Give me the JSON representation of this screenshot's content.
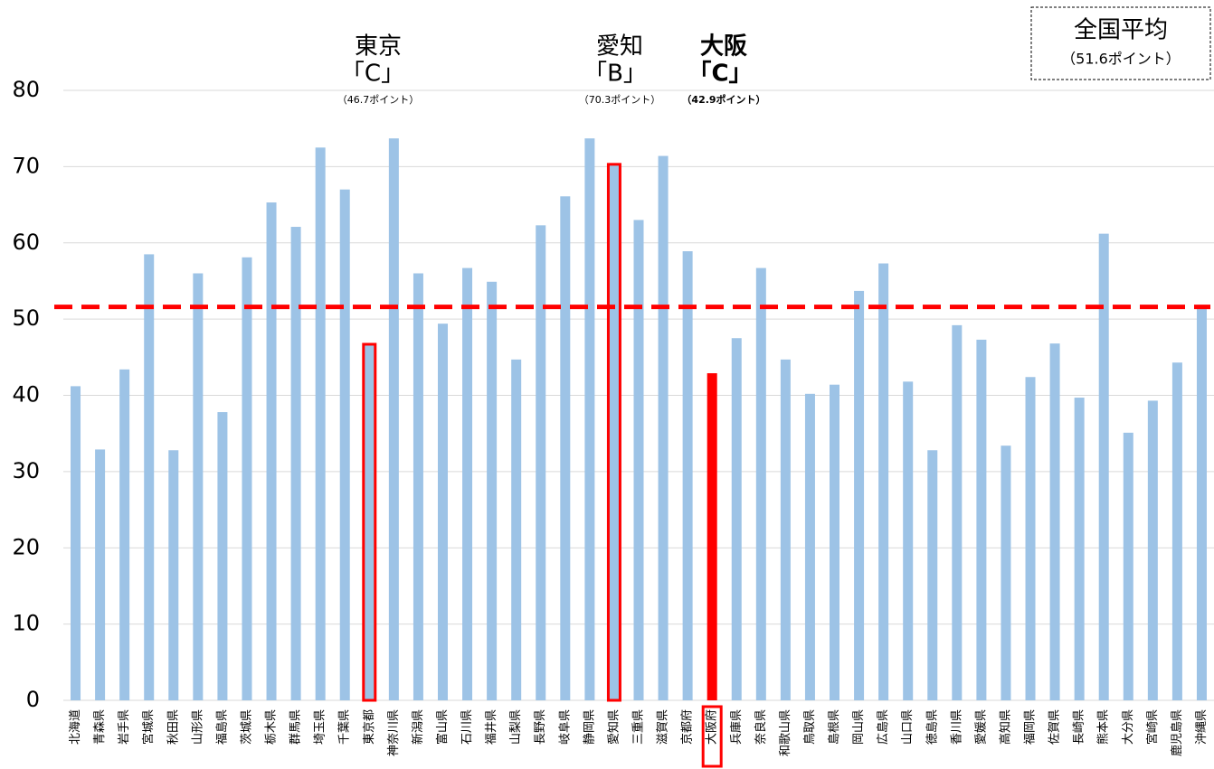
{
  "chart_data": {
    "type": "bar",
    "categories": [
      "北海道",
      "青森県",
      "岩手県",
      "宮城県",
      "秋田県",
      "山形県",
      "福島県",
      "茨城県",
      "栃木県",
      "群馬県",
      "埼玉県",
      "千葉県",
      "東京都",
      "神奈川県",
      "新潟県",
      "富山県",
      "石川県",
      "福井県",
      "山梨県",
      "長野県",
      "岐阜県",
      "静岡県",
      "愛知県",
      "三重県",
      "滋賀県",
      "京都府",
      "大阪府",
      "兵庫県",
      "奈良県",
      "和歌山県",
      "鳥取県",
      "島根県",
      "岡山県",
      "広島県",
      "山口県",
      "徳島県",
      "香川県",
      "愛媛県",
      "高知県",
      "福岡県",
      "佐賀県",
      "長崎県",
      "熊本県",
      "大分県",
      "宮崎県",
      "鹿児島県",
      "沖縄県"
    ],
    "values": [
      41.2,
      32.9,
      43.4,
      58.5,
      32.8,
      56.0,
      37.8,
      58.1,
      65.3,
      62.1,
      72.5,
      67.0,
      46.7,
      73.7,
      56.0,
      49.4,
      56.7,
      54.9,
      44.7,
      62.3,
      66.1,
      73.7,
      70.3,
      63.0,
      71.4,
      58.9,
      42.9,
      47.5,
      56.7,
      44.7,
      40.2,
      41.4,
      53.7,
      57.3,
      41.8,
      32.8,
      49.2,
      47.3,
      33.4,
      42.4,
      46.8,
      39.7,
      61.2,
      35.1,
      39.3,
      44.3,
      51.4
    ],
    "color": "#9dc3e6",
    "highlight_color": "#ff0000",
    "outline_indices": [
      12,
      22
    ],
    "fill_indices": [
      26
    ],
    "ylim": [
      0,
      80
    ],
    "yticks": [
      0,
      10,
      20,
      30,
      40,
      50,
      60,
      70,
      80
    ],
    "grid": true,
    "average": {
      "value": 51.6,
      "title": "全国平均",
      "label": "（51.6ポイント）"
    },
    "annotations": [
      {
        "name": "東京",
        "grade": "「C」",
        "points": "（46.7ポイント）"
      },
      {
        "name": "愛知",
        "grade": "「B」",
        "points": "（70.3ポイント）"
      },
      {
        "name": "大阪",
        "grade": "「C」",
        "points": "（42.9ポイント）"
      }
    ]
  }
}
